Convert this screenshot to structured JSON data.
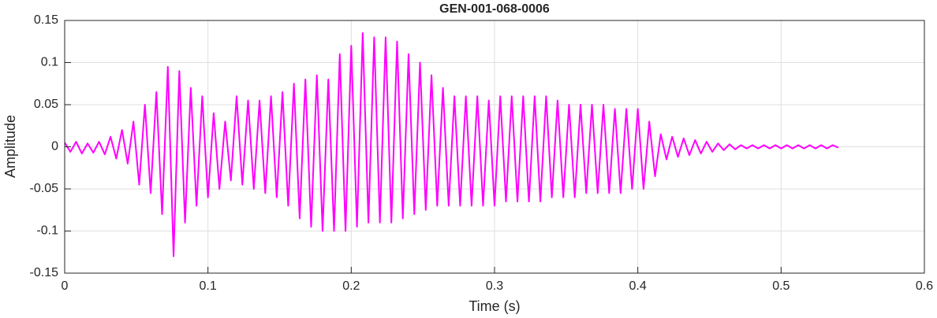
{
  "chart_data": {
    "type": "line",
    "title": "GEN-001-068-0006",
    "x_label": "Time (s)",
    "y_label": "Amplitude",
    "x": [
      0,
      0.004,
      0.008,
      0.012,
      0.016,
      0.02,
      0.024,
      0.028,
      0.032,
      0.036,
      0.04,
      0.044,
      0.048,
      0.052,
      0.056,
      0.06,
      0.064,
      0.068,
      0.072,
      0.076,
      0.08,
      0.084,
      0.088,
      0.092,
      0.096,
      0.1,
      0.104,
      0.108,
      0.112,
      0.116,
      0.12,
      0.124,
      0.128,
      0.132,
      0.136,
      0.14,
      0.144,
      0.148,
      0.152,
      0.156,
      0.16,
      0.164,
      0.168,
      0.172,
      0.176,
      0.18,
      0.184,
      0.188,
      0.192,
      0.196,
      0.2,
      0.204,
      0.208,
      0.212,
      0.216,
      0.22,
      0.224,
      0.228,
      0.232,
      0.236,
      0.24,
      0.244,
      0.248,
      0.252,
      0.256,
      0.26,
      0.264,
      0.268,
      0.272,
      0.276,
      0.28,
      0.284,
      0.288,
      0.292,
      0.296,
      0.3,
      0.304,
      0.308,
      0.312,
      0.316,
      0.32,
      0.324,
      0.328,
      0.332,
      0.336,
      0.34,
      0.344,
      0.348,
      0.352,
      0.356,
      0.36,
      0.364,
      0.368,
      0.372,
      0.376,
      0.38,
      0.384,
      0.388,
      0.392,
      0.396,
      0.4,
      0.404,
      0.408,
      0.412,
      0.416,
      0.42,
      0.424,
      0.428,
      0.432,
      0.436,
      0.44,
      0.444,
      0.448,
      0.452,
      0.456,
      0.46,
      0.464,
      0.468,
      0.472,
      0.476,
      0.48,
      0.484,
      0.488,
      0.492,
      0.496,
      0.5,
      0.504,
      0.508,
      0.512,
      0.516,
      0.52,
      0.524,
      0.528,
      0.532,
      0.536,
      0.54
    ],
    "values": [
      0.005,
      -0.006,
      0.006,
      -0.008,
      0.004,
      -0.007,
      0.006,
      -0.009,
      0.012,
      -0.014,
      0.02,
      -0.02,
      0.03,
      -0.045,
      0.05,
      -0.055,
      0.065,
      -0.08,
      0.095,
      -0.13,
      0.09,
      -0.09,
      0.07,
      -0.07,
      0.06,
      -0.06,
      0.04,
      -0.05,
      0.03,
      -0.04,
      0.06,
      -0.045,
      0.055,
      -0.05,
      0.055,
      -0.055,
      0.06,
      -0.06,
      0.065,
      -0.07,
      0.075,
      -0.085,
      0.08,
      -0.095,
      0.085,
      -0.1,
      0.08,
      -0.1,
      0.11,
      -0.1,
      0.12,
      -0.095,
      0.135,
      -0.09,
      0.13,
      -0.09,
      0.13,
      -0.09,
      0.125,
      -0.085,
      0.11,
      -0.08,
      0.1,
      -0.075,
      0.085,
      -0.07,
      0.07,
      -0.07,
      0.06,
      -0.07,
      0.06,
      -0.07,
      0.06,
      -0.07,
      0.055,
      -0.07,
      0.06,
      -0.065,
      0.06,
      -0.065,
      0.06,
      -0.065,
      0.06,
      -0.065,
      0.06,
      -0.06,
      0.055,
      -0.06,
      0.05,
      -0.06,
      0.05,
      -0.055,
      0.05,
      -0.055,
      0.05,
      -0.055,
      0.045,
      -0.055,
      0.045,
      -0.05,
      0.045,
      -0.05,
      0.03,
      -0.035,
      0.015,
      -0.015,
      0.012,
      -0.012,
      0.01,
      -0.01,
      0.008,
      -0.008,
      0.006,
      -0.006,
      0.004,
      -0.004,
      0.003,
      -0.003,
      0.002,
      -0.002,
      0.002,
      -0.002,
      0.002,
      -0.002,
      0.002,
      -0.002,
      0.002,
      -0.002,
      0.002,
      -0.002,
      0.002,
      -0.002,
      0.002,
      -0.002,
      0.002,
      -0.001
    ],
    "color": "#ff00ff",
    "xlim": [
      0,
      0.6
    ],
    "ylim": [
      -0.15,
      0.15
    ],
    "xticks": [
      0,
      0.1,
      0.2,
      0.3,
      0.4,
      0.5,
      0.6
    ],
    "yticks": [
      -0.15,
      -0.1,
      -0.05,
      0,
      0.05,
      0.1,
      0.15
    ],
    "grid": true
  }
}
